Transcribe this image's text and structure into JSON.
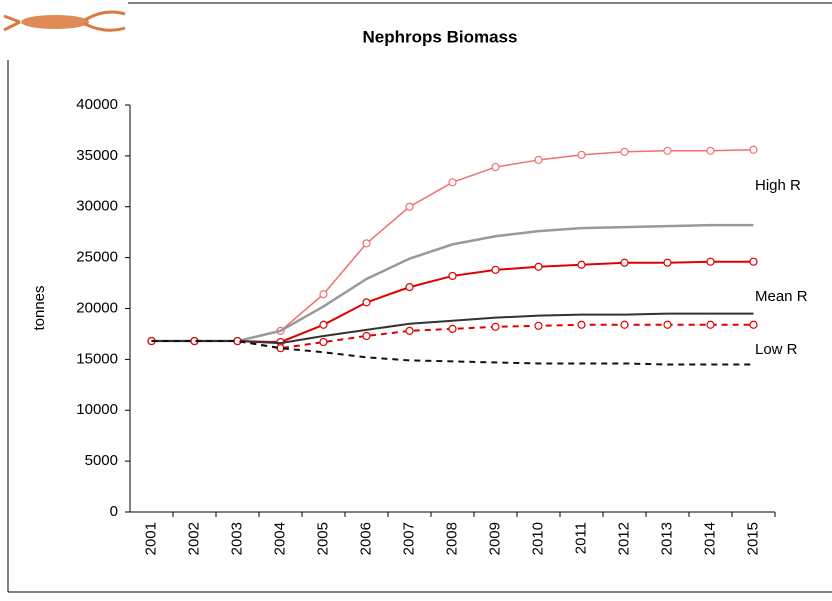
{
  "chart_data": {
    "type": "line",
    "title": "Nephrops Biomass",
    "y_label": "tonnes",
    "categories": [
      "2001",
      "2002",
      "2003",
      "2004",
      "2005",
      "2006",
      "2007",
      "2008",
      "2009",
      "2010",
      "2011",
      "2012",
      "2013",
      "2014",
      "2015"
    ],
    "series": [
      {
        "color": "#f07070",
        "markers": true,
        "dashed": false,
        "width": 1.5,
        "values": [
          16800,
          16800,
          16800,
          17800,
          21400,
          26400,
          30000,
          32400,
          33900,
          34600,
          35100,
          35400,
          35500,
          35500,
          35600
        ]
      },
      {
        "color": "#999999",
        "markers": false,
        "dashed": false,
        "width": 2.5,
        "values": [
          16800,
          16800,
          16800,
          17800,
          20200,
          22900,
          24900,
          26300,
          27100,
          27600,
          27900,
          28000,
          28100,
          28200,
          28200
        ]
      },
      {
        "color": "#e00000",
        "markers": true,
        "dashed": false,
        "width": 2,
        "values": [
          16800,
          16800,
          16800,
          16700,
          18400,
          20600,
          22100,
          23200,
          23800,
          24100,
          24300,
          24500,
          24500,
          24600,
          24600
        ]
      },
      {
        "color": "#333333",
        "markers": false,
        "dashed": false,
        "width": 2,
        "values": [
          16800,
          16800,
          16800,
          16600,
          17300,
          17900,
          18500,
          18800,
          19100,
          19300,
          19400,
          19400,
          19500,
          19500,
          19500
        ]
      },
      {
        "color": "#e00000",
        "markers": true,
        "dashed": true,
        "width": 2,
        "values": [
          16800,
          16800,
          16800,
          16100,
          16700,
          17300,
          17800,
          18000,
          18200,
          18300,
          18400,
          18400,
          18400,
          18400,
          18400
        ]
      },
      {
        "color": "#111111",
        "markers": false,
        "dashed": true,
        "width": 2,
        "values": [
          16800,
          16800,
          16800,
          16100,
          15700,
          15200,
          14900,
          14800,
          14700,
          14600,
          14600,
          14600,
          14500,
          14500,
          14500
        ]
      }
    ],
    "annotations": [
      "High R",
      "Mean R",
      "Low R"
    ],
    "ylim": [
      0,
      40000
    ],
    "yticks": [
      0,
      5000,
      10000,
      15000,
      20000,
      25000,
      30000,
      35000,
      40000
    ]
  }
}
